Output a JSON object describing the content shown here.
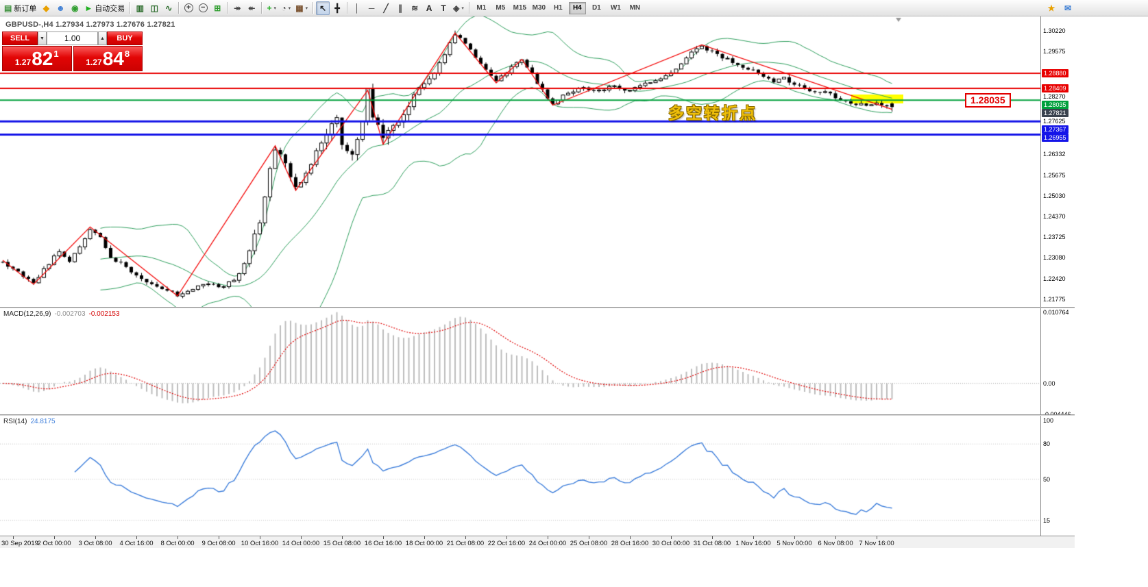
{
  "toolbar": {
    "dropdown_glyph": "▾",
    "groups": [
      {
        "items": [
          {
            "name": "new-order-button",
            "glyph": "▤",
            "glyph_color": "#3a8f3a",
            "label": "新订单"
          },
          {
            "name": "alerts-icon",
            "glyph": "◆",
            "glyph_color": "#e8a000"
          },
          {
            "name": "community-icon",
            "glyph": "☻",
            "glyph_color": "#3f7fd4"
          },
          {
            "name": "sounds-icon",
            "glyph": "◉",
            "glyph_color": "#2f9e2f"
          },
          {
            "name": "autotrading-button",
            "glyph": "►",
            "glyph_color": "#1faf1f",
            "label": "自动交易"
          }
        ]
      },
      {
        "items": [
          {
            "name": "bar-chart-icon",
            "glyph": "▥",
            "glyph_color": "#2a6b2a"
          },
          {
            "name": "candlestick-chart-icon",
            "glyph": "◫",
            "glyph_color": "#2a6b2a"
          },
          {
            "name": "line-chart-icon",
            "glyph": "∿",
            "glyph_color": "#2a6b2a"
          }
        ]
      },
      {
        "items": [
          {
            "name": "zoom-in-icon",
            "glyph": "+",
            "circle": true
          },
          {
            "name": "zoom-out-icon",
            "glyph": "−",
            "circle": true
          },
          {
            "name": "tile-windows-icon",
            "glyph": "⊞",
            "glyph_color": "#2f9e2f"
          }
        ]
      },
      {
        "items": [
          {
            "name": "auto-scroll-icon",
            "glyph": "↠",
            "glyph_color": "#444444"
          },
          {
            "name": "chart-shift-icon",
            "glyph": "↞",
            "glyph_color": "#444444"
          }
        ]
      },
      {
        "items": [
          {
            "name": "indicators-icon",
            "glyph": "+",
            "glyph_color": "#1faf1f",
            "dropdown": true
          },
          {
            "name": "periods-icon",
            "glyph": "◔",
            "glyph_color": "#444444",
            "dropdown": true
          },
          {
            "name": "templates-icon",
            "glyph": "▦",
            "glyph_color": "#7a5230",
            "dropdown": true
          }
        ]
      },
      {
        "items": [
          {
            "name": "cursor-icon",
            "glyph": "↖",
            "glyph_color": "#222222",
            "active": true
          },
          {
            "name": "crosshair-icon",
            "glyph": "╋",
            "glyph_color": "#222222"
          }
        ]
      },
      {
        "items": [
          {
            "name": "vertical-line-icon",
            "glyph": "│",
            "glyph_color": "#444444"
          },
          {
            "name": "horizontal-line-icon",
            "glyph": "─",
            "glyph_color": "#444444"
          },
          {
            "name": "trendline-icon",
            "glyph": "╱",
            "glyph_color": "#444444"
          },
          {
            "name": "channel-icon",
            "glyph": "∥",
            "glyph_color": "#444444"
          },
          {
            "name": "fibonacci-icon",
            "glyph": "≋",
            "glyph_color": "#444444"
          },
          {
            "name": "text-icon",
            "glyph": "A",
            "glyph_color": "#222222"
          },
          {
            "name": "label-icon",
            "glyph": "T",
            "glyph_color": "#222222"
          },
          {
            "name": "shapes-icon",
            "glyph": "◈",
            "glyph_color": "#444444",
            "dropdown": true
          }
        ]
      }
    ],
    "timeframes": {
      "items": [
        "M1",
        "M5",
        "M15",
        "M30",
        "H1",
        "H4",
        "D1",
        "W1",
        "MN"
      ],
      "active": "H4"
    },
    "right_icons": [
      {
        "name": "whatsnew-icon",
        "glyph": "★",
        "glyph_color": "#e8a000"
      },
      {
        "name": "chat-icon",
        "glyph": "✉",
        "glyph_color": "#3f7fd4"
      }
    ]
  },
  "symbol_header": {
    "text": "GBPUSD-,H4 1.27934 1.27973 1.27676 1.27821"
  },
  "quote_panel": {
    "sell_label": "SELL",
    "buy_label": "BUY",
    "volume": "1.00",
    "spin_down": "▼",
    "spin_up": "▲",
    "sell_price": {
      "main": "1.27",
      "big": "82",
      "sup": "1"
    },
    "buy_price": {
      "main": "1.27",
      "big": "84",
      "sup": "8"
    }
  },
  "annotations": {
    "turning_point": "多空转折点",
    "price_box": "1.28035"
  },
  "price_scale": {
    "labels": [
      {
        "text": "1.30220",
        "price": 1.3022,
        "style": "plain"
      },
      {
        "text": "1.29575",
        "price": 1.29575,
        "style": "plain"
      },
      {
        "text": "1.28880",
        "price": 1.2888,
        "style": "red"
      },
      {
        "text": "1.28409",
        "price": 1.28409,
        "style": "red"
      },
      {
        "text": "1.28270",
        "price": 1.2827,
        "style": "plain"
      },
      {
        "text": "1.28035",
        "price": 1.28035,
        "style": "green"
      },
      {
        "text": "1.27821",
        "price": 1.27821,
        "style": "bid"
      },
      {
        "text": "1.27625",
        "price": 1.27625,
        "style": "plain"
      },
      {
        "text": "1.27367",
        "price": 1.27367,
        "style": "blue"
      },
      {
        "text": "1.26955",
        "price": 1.26955,
        "style": "blue"
      },
      {
        "text": "1.26332",
        "price": 1.26332,
        "style": "plain"
      },
      {
        "text": "1.25675",
        "price": 1.25675,
        "style": "plain"
      },
      {
        "text": "1.25030",
        "price": 1.2503,
        "style": "plain"
      },
      {
        "text": "1.24370",
        "price": 1.2437,
        "style": "plain"
      },
      {
        "text": "1.23725",
        "price": 1.23725,
        "style": "plain"
      },
      {
        "text": "1.23080",
        "price": 1.2308,
        "style": "plain"
      },
      {
        "text": "1.22420",
        "price": 1.2242,
        "style": "plain"
      },
      {
        "text": "1.21775",
        "price": 1.21775,
        "style": "plain"
      }
    ]
  },
  "macd_panel": {
    "name": "MACD(12,26,9)",
    "value1": "-0.002703",
    "value2": "-0.002153",
    "scale": [
      {
        "text": "0.010764",
        "value": 0.010764
      },
      {
        "text": "0.00",
        "value": 0
      },
      {
        "text": "-0.004446",
        "value": -0.004446
      }
    ]
  },
  "rsi_panel": {
    "name": "RSI(14)",
    "value": "24.8175",
    "scale": [
      {
        "text": "100",
        "value": 100
      },
      {
        "text": "80",
        "value": 80
      },
      {
        "text": "50",
        "value": 50
      },
      {
        "text": "15",
        "value": 15
      }
    ],
    "levels": [
      80,
      50,
      15
    ]
  },
  "time_axis": {
    "labels": [
      "30 Sep 2019",
      "2 Oct 00:00",
      "3 Oct 08:00",
      "4 Oct 16:00",
      "8 Oct 00:00",
      "9 Oct 08:00",
      "10 Oct 16:00",
      "14 Oct 00:00",
      "15 Oct 08:00",
      "16 Oct 16:00",
      "18 Oct 00:00",
      "21 Oct 08:00",
      "22 Oct 16:00",
      "24 Oct 00:00",
      "25 Oct 08:00",
      "28 Oct 16:00",
      "30 Oct 00:00",
      "31 Oct 08:00",
      "1 Nov 16:00",
      "5 Nov 00:00",
      "6 Nov 08:00",
      "7 Nov 16:00"
    ]
  },
  "colors": {
    "buy_sell_red": "#e20505",
    "bollinger_green": "#2d9e5c",
    "zigzag_red": "#f40606",
    "macd_histogram": "#bdbdbd",
    "macd_signal": "#e00000",
    "rsi_blue": "#3d7edb",
    "hline_red": "#e80000",
    "hline_green": "#00a03c",
    "hline_blue": "#1414e8",
    "bid_label_bg": "#3a424e",
    "highlight_yellow": "#ffff00",
    "annotation_gold": "#eebe0a"
  },
  "chart_data": {
    "type": "candlestick",
    "symbol": "GBPUSD-",
    "timeframe": "H4",
    "bars": 174,
    "last_ohlc": [
      1.27934,
      1.27973,
      1.27676,
      1.27821
    ],
    "price_axis": {
      "top": 1.3067,
      "bottom": 1.21537
    },
    "price_path": [
      [
        0,
        1.2295
      ],
      [
        3,
        1.226
      ],
      [
        6,
        1.2228
      ],
      [
        9,
        1.229
      ],
      [
        11,
        1.233
      ],
      [
        13,
        1.23
      ],
      [
        15,
        1.234
      ],
      [
        17,
        1.24
      ],
      [
        19,
        1.237
      ],
      [
        21,
        1.231
      ],
      [
        24,
        1.228
      ],
      [
        27,
        1.224
      ],
      [
        30,
        1.222
      ],
      [
        34,
        1.2192
      ],
      [
        37,
        1.221
      ],
      [
        40,
        1.223
      ],
      [
        43,
        1.2215
      ],
      [
        46,
        1.2255
      ],
      [
        48,
        1.233
      ],
      [
        50,
        1.242
      ],
      [
        52,
        1.258
      ],
      [
        53,
        1.2655
      ],
      [
        55,
        1.261
      ],
      [
        57,
        1.2525
      ],
      [
        59,
        1.257
      ],
      [
        61,
        1.264
      ],
      [
        63,
        1.269
      ],
      [
        65,
        1.2745
      ],
      [
        66,
        1.267
      ],
      [
        68,
        1.263
      ],
      [
        70,
        1.273
      ],
      [
        71,
        1.283
      ],
      [
        72,
        1.275
      ],
      [
        74,
        1.268
      ],
      [
        76,
        1.272
      ],
      [
        78,
        1.276
      ],
      [
        80,
        1.282
      ],
      [
        82,
        1.286
      ],
      [
        84,
        1.289
      ],
      [
        86,
        1.295
      ],
      [
        88,
        1.301
      ],
      [
        89,
        1.2995
      ],
      [
        91,
        1.296
      ],
      [
        93,
        1.292
      ],
      [
        95,
        1.288
      ],
      [
        96,
        1.2862
      ],
      [
        98,
        1.289
      ],
      [
        100,
        1.292
      ],
      [
        101,
        1.2928
      ],
      [
        103,
        1.2885
      ],
      [
        105,
        1.2835
      ],
      [
        107,
        1.2792
      ],
      [
        109,
        1.2815
      ],
      [
        111,
        1.283
      ],
      [
        113,
        1.2845
      ],
      [
        115,
        1.2828
      ],
      [
        117,
        1.2838
      ],
      [
        119,
        1.2848
      ],
      [
        121,
        1.2832
      ],
      [
        123,
        1.2845
      ],
      [
        125,
        1.2855
      ],
      [
        127,
        1.2865
      ],
      [
        129,
        1.288
      ],
      [
        131,
        1.2905
      ],
      [
        133,
        1.294
      ],
      [
        135,
        1.2965
      ],
      [
        136,
        1.2972
      ],
      [
        138,
        1.2955
      ],
      [
        140,
        1.2938
      ],
      [
        142,
        1.2925
      ],
      [
        144,
        1.2908
      ],
      [
        146,
        1.2898
      ],
      [
        148,
        1.2878
      ],
      [
        150,
        1.2862
      ],
      [
        152,
        1.2872
      ],
      [
        154,
        1.2852
      ],
      [
        156,
        1.2842
      ],
      [
        158,
        1.2825
      ],
      [
        160,
        1.2832
      ],
      [
        162,
        1.2812
      ],
      [
        164,
        1.2802
      ],
      [
        166,
        1.2792
      ],
      [
        168,
        1.2786
      ],
      [
        170,
        1.2798
      ],
      [
        172,
        1.2788
      ],
      [
        173,
        1.2782
      ]
    ],
    "zigzag": [
      [
        0,
        1.23
      ],
      [
        6,
        1.2225
      ],
      [
        17,
        1.2405
      ],
      [
        34,
        1.2188
      ],
      [
        53,
        1.266
      ],
      [
        57,
        1.252
      ],
      [
        71,
        1.2835
      ],
      [
        74,
        1.2665
      ],
      [
        88,
        1.3015
      ],
      [
        96,
        1.2858
      ],
      [
        101,
        1.2932
      ],
      [
        107,
        1.2788
      ],
      [
        136,
        1.2978
      ],
      [
        173,
        1.2775
      ]
    ],
    "bollinger": {
      "period": 20,
      "deviation": 2
    },
    "hlines": [
      {
        "price": 1.2888,
        "color": "#e80000",
        "width": 2
      },
      {
        "price": 1.28409,
        "color": "#e80000",
        "width": 2
      },
      {
        "price": 1.28035,
        "color": "#00a03c",
        "width": 2
      },
      {
        "price": 1.27367,
        "color": "#1414e8",
        "width": 3
      },
      {
        "price": 1.26955,
        "color": "#1414e8",
        "width": 3
      }
    ],
    "macd": {
      "fast": 12,
      "slow": 26,
      "signal": 9,
      "scale_max": 0.010764,
      "scale_min": -0.004446
    },
    "rsi": {
      "period": 14
    }
  }
}
